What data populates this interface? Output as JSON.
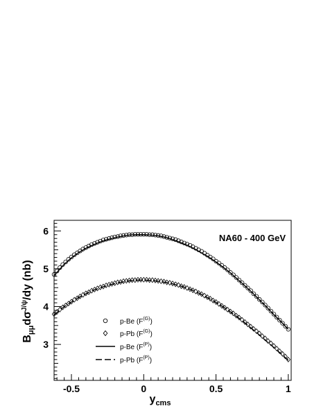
{
  "chart_data": {
    "type": "scatter",
    "title": "",
    "annotation": "NA60 - 400 GeV",
    "xlabel": {
      "main": "y",
      "sub": "cms"
    },
    "ylabel": {
      "b": "B",
      "b_sub": "μμ",
      "mid": "dσ",
      "sup": "J/ψ",
      "tail": "/dy (nb)"
    },
    "xlim": [
      -0.62,
      1.02
    ],
    "ylim": [
      2.05,
      6.28
    ],
    "xticks": [
      {
        "value": -0.5,
        "label": "-0.5"
      },
      {
        "value": 0,
        "label": "0"
      },
      {
        "value": 0.5,
        "label": "0.5"
      },
      {
        "value": 1,
        "label": "1"
      }
    ],
    "yticks": [
      {
        "value": 3,
        "label": "3"
      },
      {
        "value": 4,
        "label": "4"
      },
      {
        "value": 5,
        "label": "5"
      },
      {
        "value": 6,
        "label": "6"
      }
    ],
    "legend_placement": "left",
    "legend": [
      {
        "marker": "circle",
        "text": "p-Be (F",
        "sup": "(G)",
        "close": ")"
      },
      {
        "marker": "diamond",
        "text": "p-Pb (F",
        "sup": "(G)",
        "close": ")"
      },
      {
        "marker": "solid-line",
        "text": "p-Be (F",
        "sup": "(P)",
        "close": ")"
      },
      {
        "marker": "dashed-line",
        "text": "p-Pb (F",
        "sup": "(P)",
        "close": ")"
      }
    ],
    "series": [
      {
        "name": "p-Be (F(G))",
        "style": "markers",
        "marker": "circle",
        "x": [
          -0.62,
          -0.6,
          -0.58,
          -0.56,
          -0.54,
          -0.52,
          -0.5,
          -0.48,
          -0.46,
          -0.44,
          -0.42,
          -0.4,
          -0.38,
          -0.36,
          -0.34,
          -0.32,
          -0.3,
          -0.28,
          -0.26,
          -0.24,
          -0.22,
          -0.2,
          -0.18,
          -0.16,
          -0.14,
          -0.12,
          -0.1,
          -0.08,
          -0.06,
          -0.04,
          -0.02,
          0.0,
          0.02,
          0.04,
          0.06,
          0.08,
          0.1,
          0.12,
          0.14,
          0.16,
          0.18,
          0.2,
          0.22,
          0.24,
          0.26,
          0.28,
          0.3,
          0.32,
          0.34,
          0.36,
          0.38,
          0.4,
          0.42,
          0.44,
          0.46,
          0.48,
          0.5,
          0.52,
          0.54,
          0.56,
          0.58,
          0.6,
          0.62,
          0.64,
          0.66,
          0.68,
          0.7,
          0.72,
          0.74,
          0.76,
          0.78,
          0.8,
          0.82,
          0.84,
          0.86,
          0.88,
          0.9,
          0.92,
          0.94,
          0.96,
          0.98,
          1.0
        ],
        "y": [
          4.85,
          4.94,
          5.03,
          5.11,
          5.18,
          5.25,
          5.31,
          5.37,
          5.42,
          5.47,
          5.52,
          5.56,
          5.6,
          5.64,
          5.67,
          5.7,
          5.73,
          5.76,
          5.78,
          5.8,
          5.82,
          5.84,
          5.85,
          5.87,
          5.88,
          5.89,
          5.9,
          5.9,
          5.91,
          5.91,
          5.91,
          5.91,
          5.91,
          5.9,
          5.9,
          5.89,
          5.88,
          5.87,
          5.85,
          5.83,
          5.81,
          5.79,
          5.77,
          5.74,
          5.71,
          5.68,
          5.65,
          5.62,
          5.58,
          5.54,
          5.5,
          5.46,
          5.41,
          5.36,
          5.31,
          5.26,
          5.2,
          5.15,
          5.09,
          5.03,
          4.97,
          4.9,
          4.84,
          4.77,
          4.7,
          4.63,
          4.56,
          4.49,
          4.42,
          4.34,
          4.27,
          4.19,
          4.12,
          4.04,
          3.96,
          3.88,
          3.8,
          3.72,
          3.64,
          3.56,
          3.48,
          3.4
        ]
      },
      {
        "name": "p-Pb (F(G))",
        "style": "markers",
        "marker": "diamond",
        "x": [
          -0.62,
          -0.6,
          -0.58,
          -0.56,
          -0.54,
          -0.52,
          -0.5,
          -0.48,
          -0.46,
          -0.44,
          -0.42,
          -0.4,
          -0.38,
          -0.36,
          -0.34,
          -0.32,
          -0.3,
          -0.28,
          -0.26,
          -0.24,
          -0.22,
          -0.2,
          -0.18,
          -0.16,
          -0.14,
          -0.12,
          -0.1,
          -0.08,
          -0.06,
          -0.04,
          -0.02,
          0.0,
          0.02,
          0.04,
          0.06,
          0.08,
          0.1,
          0.12,
          0.14,
          0.16,
          0.18,
          0.2,
          0.22,
          0.24,
          0.26,
          0.28,
          0.3,
          0.32,
          0.34,
          0.36,
          0.38,
          0.4,
          0.42,
          0.44,
          0.46,
          0.48,
          0.5,
          0.52,
          0.54,
          0.56,
          0.58,
          0.6,
          0.62,
          0.64,
          0.66,
          0.68,
          0.7,
          0.72,
          0.74,
          0.76,
          0.78,
          0.8,
          0.82,
          0.84,
          0.86,
          0.88,
          0.9,
          0.92,
          0.94,
          0.96,
          0.98,
          1.0
        ],
        "y": [
          3.8,
          3.86,
          3.92,
          3.98,
          4.03,
          4.08,
          4.13,
          4.18,
          4.22,
          4.27,
          4.31,
          4.35,
          4.38,
          4.42,
          4.45,
          4.48,
          4.51,
          4.53,
          4.56,
          4.58,
          4.6,
          4.62,
          4.64,
          4.65,
          4.67,
          4.68,
          4.69,
          4.7,
          4.7,
          4.71,
          4.71,
          4.71,
          4.71,
          4.7,
          4.7,
          4.69,
          4.68,
          4.67,
          4.66,
          4.64,
          4.63,
          4.61,
          4.59,
          4.57,
          4.54,
          4.52,
          4.49,
          4.46,
          4.43,
          4.4,
          4.36,
          4.33,
          4.29,
          4.25,
          4.21,
          4.16,
          4.12,
          4.07,
          4.02,
          3.97,
          3.92,
          3.87,
          3.82,
          3.76,
          3.71,
          3.65,
          3.59,
          3.53,
          3.47,
          3.41,
          3.35,
          3.29,
          3.22,
          3.16,
          3.09,
          3.03,
          2.96,
          2.89,
          2.82,
          2.75,
          2.68,
          2.6
        ]
      },
      {
        "name": "p-Be (F(P))",
        "style": "solid-line",
        "x": [
          -0.62,
          -0.55,
          -0.5,
          -0.45,
          -0.4,
          -0.35,
          -0.3,
          -0.25,
          -0.2,
          -0.15,
          -0.1,
          -0.05,
          0.0,
          0.05,
          0.1,
          0.15,
          0.2,
          0.25,
          0.3,
          0.35,
          0.4,
          0.45,
          0.5,
          0.55,
          0.6,
          0.65,
          0.7,
          0.75,
          0.8,
          0.85,
          0.9,
          0.95,
          1.0
        ],
        "y": [
          4.82,
          5.12,
          5.29,
          5.43,
          5.54,
          5.63,
          5.71,
          5.77,
          5.82,
          5.86,
          5.89,
          5.9,
          5.9,
          5.89,
          5.87,
          5.83,
          5.77,
          5.7,
          5.62,
          5.53,
          5.42,
          5.31,
          5.18,
          5.04,
          4.89,
          4.72,
          4.55,
          4.37,
          4.18,
          3.99,
          3.79,
          3.6,
          3.4
        ]
      },
      {
        "name": "p-Pb (F(P))",
        "style": "dashed-line",
        "x": [
          -0.62,
          -0.55,
          -0.5,
          -0.45,
          -0.4,
          -0.35,
          -0.3,
          -0.25,
          -0.2,
          -0.15,
          -0.1,
          -0.05,
          0.0,
          0.05,
          0.1,
          0.15,
          0.2,
          0.25,
          0.3,
          0.35,
          0.4,
          0.45,
          0.5,
          0.55,
          0.6,
          0.65,
          0.7,
          0.75,
          0.8,
          0.85,
          0.9,
          0.95,
          1.0
        ],
        "y": [
          3.78,
          4.0,
          4.12,
          4.24,
          4.34,
          4.43,
          4.5,
          4.56,
          4.61,
          4.65,
          4.68,
          4.7,
          4.7,
          4.69,
          4.67,
          4.64,
          4.6,
          4.55,
          4.49,
          4.41,
          4.32,
          4.22,
          4.11,
          3.99,
          3.86,
          3.72,
          3.57,
          3.41,
          3.25,
          3.08,
          2.92,
          2.75,
          2.58
        ]
      }
    ]
  }
}
